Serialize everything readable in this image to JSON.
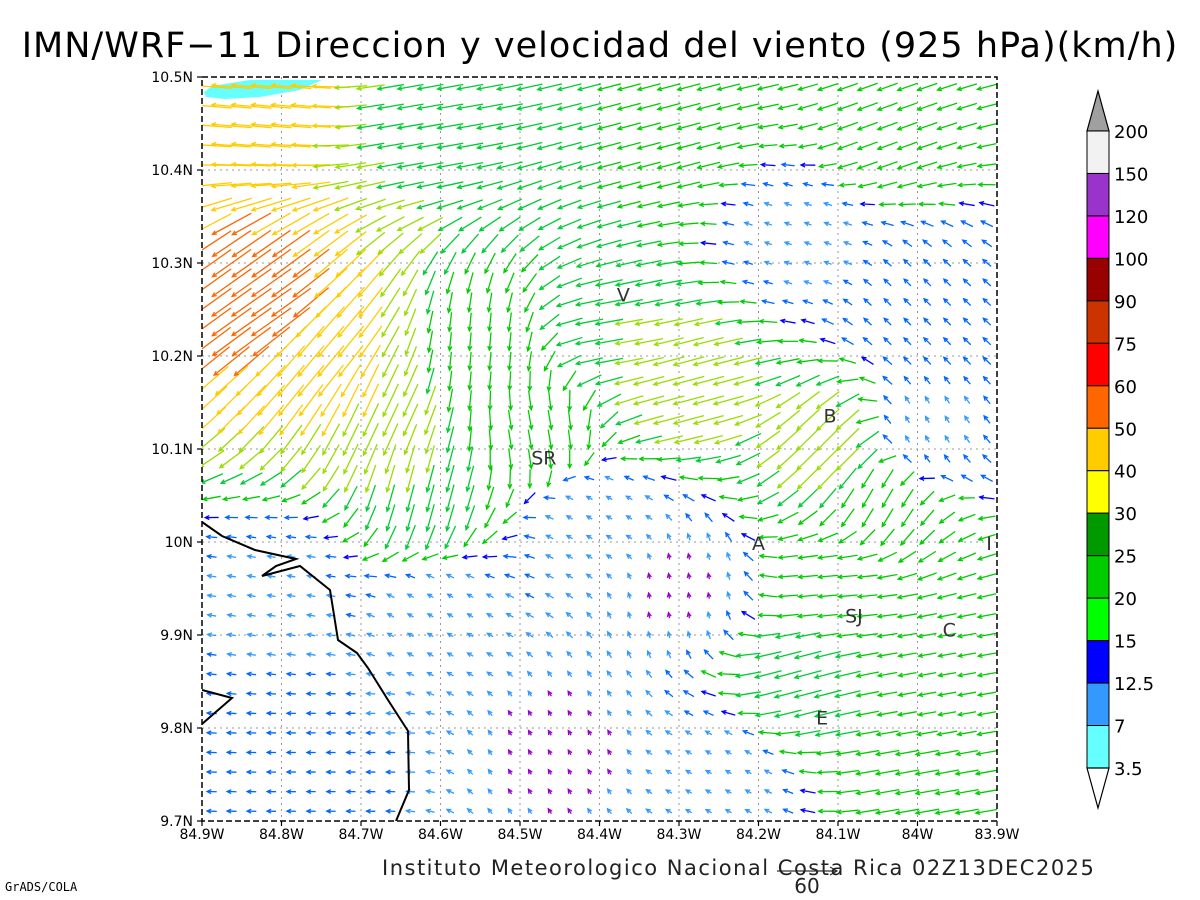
{
  "title": "IMN/WRF−11 Direccion y velocidad del viento (925 hPa)(km/h)",
  "footer": "Instituto Meteorologico Nacional Costa Rica 02Z13DEC2025",
  "credit": "GrADS/COLA",
  "reference_vector": {
    "label": "60",
    "speed_kmh": 60
  },
  "map": {
    "lon_range": [
      -84.9,
      -83.9
    ],
    "lat_range": [
      9.7,
      10.5
    ],
    "x_ticks": [
      "84.9W",
      "84.8W",
      "84.7W",
      "84.6W",
      "84.5W",
      "84.4W",
      "84.3W",
      "84.2W",
      "84.1W",
      "84W",
      "83.9W"
    ],
    "y_ticks": [
      "9.7N",
      "9.8N",
      "9.9N",
      "10N",
      "10.1N",
      "10.2N",
      "10.3N",
      "10.4N",
      "10.5N"
    ],
    "grid": true,
    "places": [
      {
        "label": "V",
        "lon": -84.37,
        "lat": 10.265
      },
      {
        "label": "SR",
        "lon": -84.47,
        "lat": 10.09
      },
      {
        "label": "B",
        "lon": -84.11,
        "lat": 10.135
      },
      {
        "label": "A",
        "lon": -84.2,
        "lat": 9.998
      },
      {
        "label": "I",
        "lon": -83.91,
        "lat": 9.998
      },
      {
        "label": "SJ",
        "lon": -84.08,
        "lat": 9.92
      },
      {
        "label": "C",
        "lon": -83.96,
        "lat": 9.905
      },
      {
        "label": "E",
        "lon": -84.12,
        "lat": 9.81
      }
    ]
  },
  "legend": {
    "labels": [
      "200",
      "150",
      "120",
      "100",
      "90",
      "75",
      "60",
      "50",
      "40",
      "30",
      "25",
      "20",
      "15",
      "12.5",
      "7",
      "3.5"
    ],
    "colors": [
      "#f2f2f2",
      "#9933cc",
      "#ff00ff",
      "#990000",
      "#cc3300",
      "#ff0000",
      "#ff6600",
      "#ffcc00",
      "#ffff00",
      "#009900",
      "#00cc00",
      "#00ff00",
      "#0000ff",
      "#3399ff",
      "#66ffff"
    ],
    "top_color": "#a0a0a0",
    "bottom_color": "#ffffff"
  },
  "speed_colors": [
    {
      "max": 3.5,
      "color": "#9900cc"
    },
    {
      "max": 7,
      "color": "#3399ff"
    },
    {
      "max": 12.5,
      "color": "#0066ff"
    },
    {
      "max": 15,
      "color": "#0000ff"
    },
    {
      "max": 20,
      "color": "#00cc00"
    },
    {
      "max": 25,
      "color": "#00cc00"
    },
    {
      "max": 30,
      "color": "#00cc33"
    },
    {
      "max": 40,
      "color": "#99dd00"
    },
    {
      "max": 50,
      "color": "#ffcc00"
    },
    {
      "max": 60,
      "color": "#ff6600"
    },
    {
      "max": 75,
      "color": "#ff3300"
    },
    {
      "max": 999,
      "color": "#ff0066"
    }
  ],
  "wind_zones": [
    {
      "lon": -84.62,
      "lat": 10.45,
      "dir_deg": 80,
      "speed": 28
    },
    {
      "lon": -84.3,
      "lat": 10.44,
      "dir_deg": 75,
      "speed": 25
    },
    {
      "lon": -84.05,
      "lat": 10.44,
      "dir_deg": 70,
      "speed": 22
    },
    {
      "lon": -84.82,
      "lat": 10.47,
      "dir_deg": 95,
      "speed": 45
    },
    {
      "lon": -84.82,
      "lat": 10.25,
      "dir_deg": 55,
      "speed": 55
    },
    {
      "lon": -84.75,
      "lat": 10.2,
      "dir_deg": 40,
      "speed": 45
    },
    {
      "lon": -84.68,
      "lat": 10.15,
      "dir_deg": 25,
      "speed": 40
    },
    {
      "lon": -84.62,
      "lat": 10.05,
      "dir_deg": 15,
      "speed": 30
    },
    {
      "lon": -84.55,
      "lat": 10.2,
      "dir_deg": 5,
      "speed": 18
    },
    {
      "lon": -84.48,
      "lat": 10.12,
      "dir_deg": 350,
      "speed": 20
    },
    {
      "lon": -84.38,
      "lat": 10.22,
      "dir_deg": 80,
      "speed": 30
    },
    {
      "lon": -84.3,
      "lat": 10.17,
      "dir_deg": 75,
      "speed": 35
    },
    {
      "lon": -84.15,
      "lat": 10.33,
      "dir_deg": 110,
      "speed": 5
    },
    {
      "lon": -84.0,
      "lat": 10.25,
      "dir_deg": 135,
      "speed": 8
    },
    {
      "lon": -84.1,
      "lat": 10.1,
      "dir_deg": 45,
      "speed": 35
    },
    {
      "lon": -84.05,
      "lat": 10.05,
      "dir_deg": 30,
      "speed": 22
    },
    {
      "lon": -84.0,
      "lat": 10.12,
      "dir_deg": 150,
      "speed": 5
    },
    {
      "lon": -84.4,
      "lat": 10.02,
      "dir_deg": 120,
      "speed": 4
    },
    {
      "lon": -84.3,
      "lat": 9.95,
      "dir_deg": 170,
      "speed": 3
    },
    {
      "lon": -84.6,
      "lat": 9.92,
      "dir_deg": 120,
      "speed": 4
    },
    {
      "lon": -84.8,
      "lat": 9.95,
      "dir_deg": 100,
      "speed": 6
    },
    {
      "lon": -84.72,
      "lat": 9.78,
      "dir_deg": 90,
      "speed": 7
    },
    {
      "lon": -84.45,
      "lat": 9.78,
      "dir_deg": 150,
      "speed": 3
    },
    {
      "lon": -84.1,
      "lat": 9.95,
      "dir_deg": 85,
      "speed": 20
    },
    {
      "lon": -83.97,
      "lat": 9.84,
      "dir_deg": 80,
      "speed": 18
    },
    {
      "lon": -84.15,
      "lat": 9.85,
      "dir_deg": 75,
      "speed": 30
    },
    {
      "lon": -84.0,
      "lat": 9.75,
      "dir_deg": 80,
      "speed": 25
    },
    {
      "lon": -84.25,
      "lat": 9.75,
      "dir_deg": 120,
      "speed": 4
    }
  ]
}
